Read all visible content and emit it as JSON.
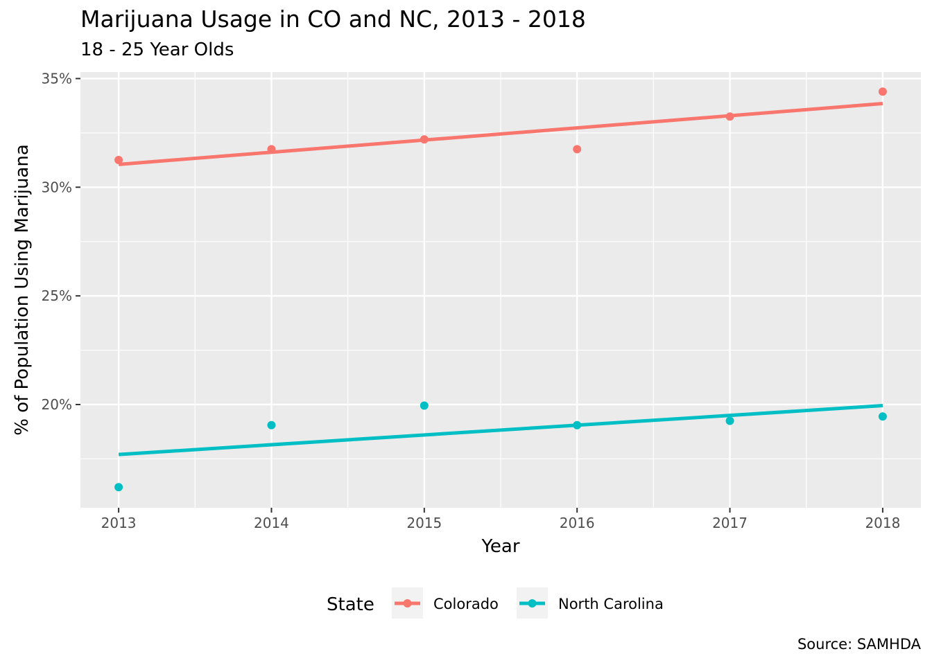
{
  "chart_data": {
    "type": "scatter",
    "title": "Marijuana Usage in CO and NC, 2013 - 2018",
    "subtitle": "18 - 25 Year Olds",
    "caption": "Source: SAMHDA",
    "xlabel": "Year",
    "ylabel": "% of Population Using Marijuana",
    "x": [
      2013,
      2014,
      2015,
      2016,
      2017,
      2018
    ],
    "x_ticks": [
      "2013",
      "2014",
      "2015",
      "2016",
      "2017",
      "2018"
    ],
    "y_ticks": [
      {
        "value": 20,
        "label": "20%"
      },
      {
        "value": 25,
        "label": "25%"
      },
      {
        "value": 30,
        "label": "30%"
      },
      {
        "value": 35,
        "label": "35%"
      }
    ],
    "xlim": [
      2012.75,
      2018.25
    ],
    "ylim": [
      15.25,
      35.3
    ],
    "grid": true,
    "legend": {
      "title": "State",
      "position": "bottom"
    },
    "series": [
      {
        "name": "Colorado",
        "color": "#F8766D",
        "values": [
          31.25,
          31.75,
          32.2,
          31.75,
          33.25,
          34.4
        ],
        "trend": {
          "start": 31.05,
          "end": 33.85
        }
      },
      {
        "name": "North Carolina",
        "color": "#00BFC4",
        "values": [
          16.2,
          19.05,
          19.95,
          19.05,
          19.25,
          19.45
        ],
        "trend": {
          "start": 17.7,
          "end": 19.95
        }
      }
    ]
  }
}
